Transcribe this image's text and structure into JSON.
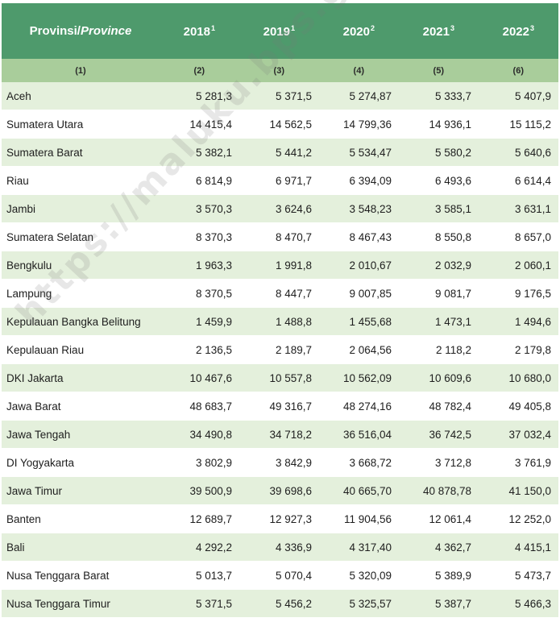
{
  "header": {
    "province_label": "Provinsi/",
    "province_label_en": "Province",
    "years": [
      {
        "year": "2018",
        "note": "1"
      },
      {
        "year": "2019",
        "note": "1"
      },
      {
        "year": "2020",
        "note": "2"
      },
      {
        "year": "2021",
        "note": "3"
      },
      {
        "year": "2022",
        "note": "3"
      }
    ],
    "column_numbers": [
      "(1)",
      "(2)",
      "(3)",
      "(4)",
      "(5)",
      "(6)"
    ]
  },
  "rows": [
    {
      "province": "Aceh",
      "values": [
        "5 281,3",
        "5 371,5",
        "5 274,87",
        "5 333,7",
        "5 407,9"
      ]
    },
    {
      "province": "Sumatera Utara",
      "values": [
        "14 415,4",
        "14 562,5",
        "14 799,36",
        "14 936,1",
        "15 115,2"
      ]
    },
    {
      "province": "Sumatera Barat",
      "values": [
        "5 382,1",
        "5 441,2",
        "5 534,47",
        "5 580,2",
        "5 640,6"
      ]
    },
    {
      "province": "Riau",
      "values": [
        "6 814,9",
        "6 971,7",
        "6 394,09",
        "6 493,6",
        "6 614,4"
      ]
    },
    {
      "province": "Jambi",
      "values": [
        "3 570,3",
        "3 624,6",
        "3 548,23",
        "3 585,1",
        "3 631,1"
      ]
    },
    {
      "province": "Sumatera Selatan",
      "values": [
        "8 370,3",
        "8 470,7",
        "8 467,43",
        "8 550,8",
        "8 657,0"
      ]
    },
    {
      "province": "Bengkulu",
      "values": [
        "1 963,3",
        "1 991,8",
        "2 010,67",
        "2 032,9",
        "2 060,1"
      ]
    },
    {
      "province": "Lampung",
      "values": [
        "8 370,5",
        "8 447,7",
        "9 007,85",
        "9 081,7",
        "9 176,5"
      ]
    },
    {
      "province": "Kepulauan Bangka Belitung",
      "values": [
        "1 459,9",
        "1 488,8",
        "1 455,68",
        "1 473,1",
        "1 494,6"
      ]
    },
    {
      "province": "Kepulauan Riau",
      "values": [
        "2 136,5",
        "2 189,7",
        "2 064,56",
        "2 118,2",
        "2 179,8"
      ]
    },
    {
      "province": "DKI Jakarta",
      "values": [
        "10 467,6",
        "10 557,8",
        "10 562,09",
        "10 609,6",
        "10 680,0"
      ]
    },
    {
      "province": "Jawa Barat",
      "values": [
        "48 683,7",
        "49 316,7",
        "48 274,16",
        "48 782,4",
        "49 405,8"
      ]
    },
    {
      "province": "Jawa Tengah",
      "values": [
        "34 490,8",
        "34 718,2",
        "36 516,04",
        "36 742,5",
        "37 032,4"
      ]
    },
    {
      "province": "DI Yogyakarta",
      "values": [
        "3 802,9",
        "3 842,9",
        "3 668,72",
        "3 712,8",
        "3 761,9"
      ]
    },
    {
      "province": "Jawa Timur",
      "values": [
        "39 500,9",
        "39 698,6",
        "40 665,70",
        "40 878,78",
        "41 150,0"
      ]
    },
    {
      "province": "Banten",
      "values": [
        "12 689,7",
        "12 927,3",
        "11 904,56",
        "12 061,4",
        "12 252,0"
      ]
    },
    {
      "province": "Bali",
      "values": [
        "4 292,2",
        "4 336,9",
        "4 317,40",
        "4 362,7",
        "4 415,1"
      ]
    },
    {
      "province": "Nusa Tenggara Barat",
      "values": [
        "5 013,7",
        "5 070,4",
        "5 320,09",
        "5 389,9",
        "5 473,7"
      ]
    },
    {
      "province": "Nusa Tenggara Timur",
      "values": [
        "5 371,5",
        "5 456,2",
        "5 325,57",
        "5 387,7",
        "5 466,3"
      ]
    }
  ],
  "watermark": "https://maluku.bps.go.id"
}
